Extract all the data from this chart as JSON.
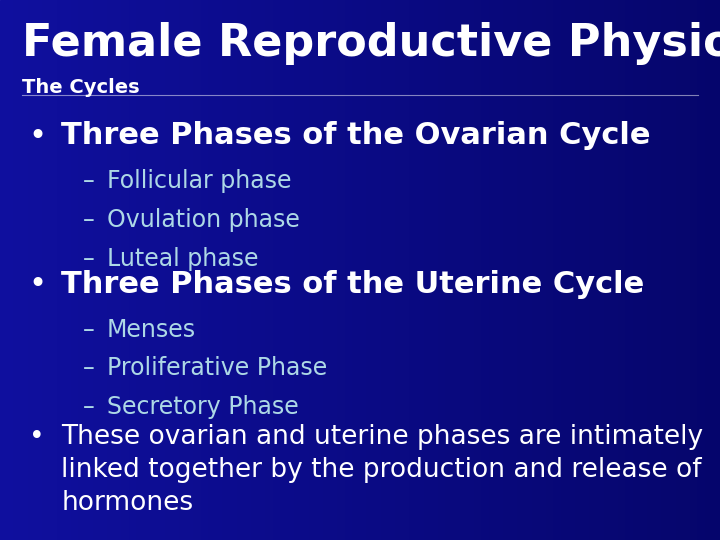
{
  "title": "Female Reproductive Physiology",
  "subtitle": "The Cycles",
  "title_color": "#FFFFFF",
  "subtitle_color": "#FFFFFF",
  "bullet_color": "#FFFFFF",
  "sub_bullet_color": "#ADD8E6",
  "title_fontsize": 32,
  "subtitle_fontsize": 14,
  "bullet_fontsize": 22,
  "sub_bullet_fontsize": 17,
  "last_bullet_fontsize": 19,
  "content": [
    {
      "text": "Three Phases of the Ovarian Cycle",
      "sub": [
        "Follicular phase",
        "Ovulation phase",
        "Luteal phase"
      ]
    },
    {
      "text": "Three Phases of the Uterine Cycle",
      "sub": [
        "Menses",
        "Proliferative Phase",
        "Secretory Phase"
      ]
    },
    {
      "text": "These ovarian and uterine phases are intimately\nlinked together by the production and release of\nhormones",
      "sub": []
    }
  ]
}
